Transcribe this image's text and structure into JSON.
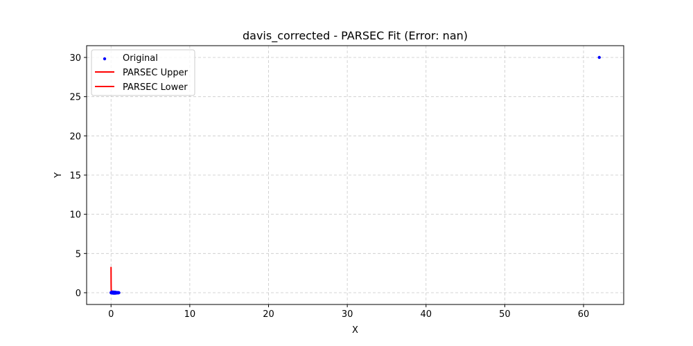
{
  "chart_data": {
    "type": "line",
    "title": "davis_corrected - PARSEC Fit (Error: nan)",
    "xlabel": "X",
    "ylabel": "Y",
    "xlim": [
      -3.1,
      65.1
    ],
    "ylim": [
      -1.5,
      31.5
    ],
    "xticks": [
      0,
      10,
      20,
      30,
      40,
      50,
      60
    ],
    "yticks": [
      0,
      5,
      10,
      15,
      20,
      25,
      30
    ],
    "grid": true,
    "legend_position": "top-left",
    "series": [
      {
        "name": "Original",
        "kind": "scatter",
        "color": "#0000ff",
        "x": [
          0.0,
          0.02,
          0.05,
          0.1,
          0.15,
          0.2,
          0.25,
          0.3,
          0.35,
          0.4,
          0.45,
          0.5,
          0.55,
          0.6,
          0.65,
          0.7,
          0.75,
          0.8,
          0.85,
          0.9,
          0.95,
          1.0,
          0.95,
          0.9,
          0.85,
          0.8,
          0.75,
          0.7,
          0.65,
          0.6,
          0.55,
          0.5,
          0.45,
          0.4,
          0.35,
          0.3,
          0.25,
          0.2,
          0.15,
          0.1,
          0.05,
          0.02,
          62.0
        ],
        "y": [
          0.0,
          0.03,
          0.05,
          0.07,
          0.08,
          0.08,
          0.08,
          0.08,
          0.07,
          0.07,
          0.06,
          0.06,
          0.05,
          0.04,
          0.04,
          0.03,
          0.02,
          0.02,
          0.01,
          0.01,
          0.0,
          0.0,
          -0.01,
          -0.02,
          -0.02,
          -0.03,
          -0.03,
          -0.04,
          -0.04,
          -0.04,
          -0.05,
          -0.05,
          -0.05,
          -0.05,
          -0.05,
          -0.05,
          -0.05,
          -0.04,
          -0.04,
          -0.03,
          -0.02,
          -0.01,
          30.0
        ]
      },
      {
        "name": "PARSEC Upper",
        "kind": "line",
        "color": "#ff0000",
        "x": [
          0.0,
          0.01,
          0.02,
          0.05,
          0.1,
          0.2,
          0.3,
          0.4,
          0.5,
          0.6,
          0.7,
          0.8,
          0.9,
          1.0
        ],
        "y": [
          3.3,
          1.2,
          0.4,
          0.15,
          0.1,
          0.09,
          0.09,
          0.08,
          0.07,
          0.06,
          0.04,
          0.03,
          0.01,
          0.0
        ]
      },
      {
        "name": "PARSEC Lower",
        "kind": "line",
        "color": "#ff0000",
        "x": [
          0.0,
          0.05,
          0.1,
          0.2,
          0.3,
          0.4,
          0.5,
          0.6,
          0.7,
          0.8,
          0.9,
          1.0
        ],
        "y": [
          0.0,
          -0.03,
          -0.04,
          -0.05,
          -0.05,
          -0.05,
          -0.05,
          -0.04,
          -0.03,
          -0.02,
          -0.01,
          0.0
        ]
      }
    ]
  }
}
